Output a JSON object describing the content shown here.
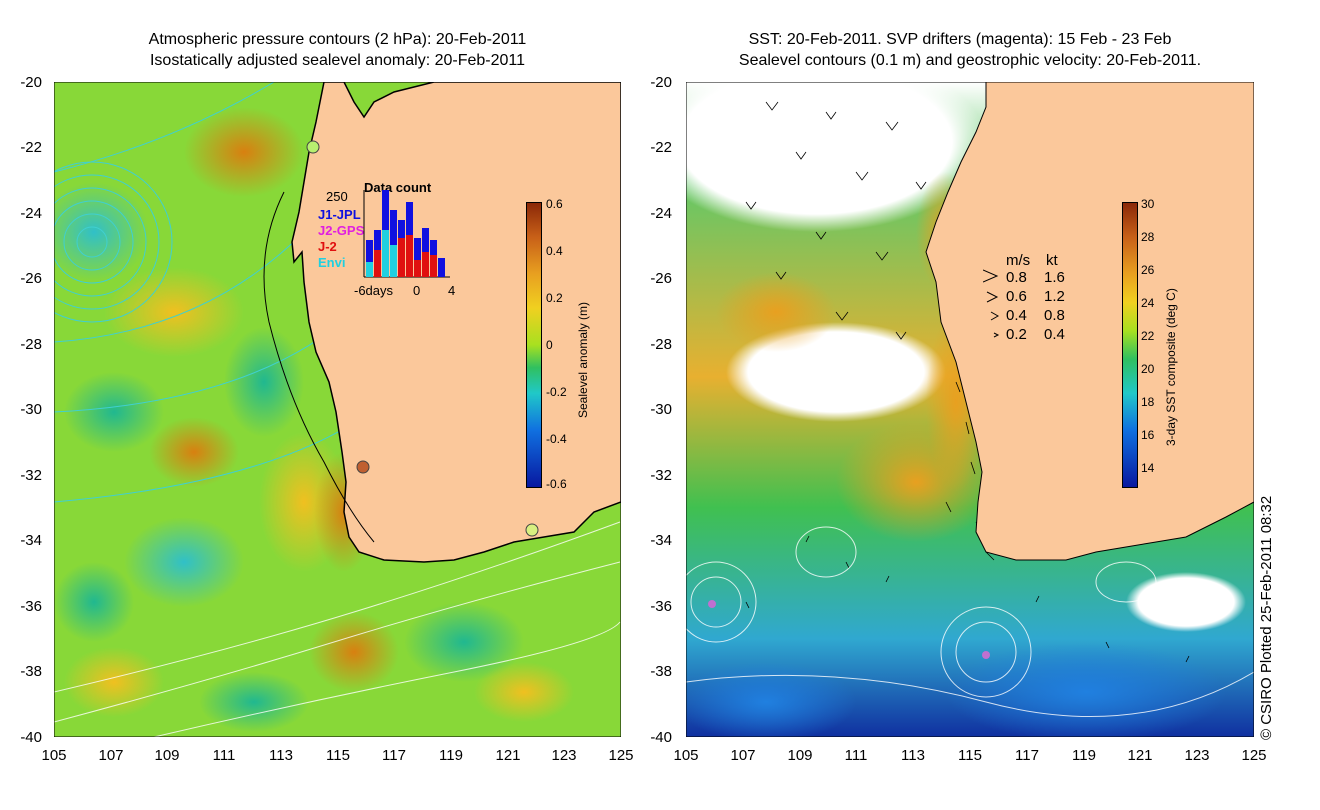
{
  "left_panel": {
    "title_line1": "Atmospheric pressure contours (2 hPa): 20-Feb-2011",
    "title_line2": "Isostatically adjusted sealevel anomaly: 20-Feb-2011",
    "colorbar_label": "Sealevel anomaly (m)",
    "colorbar_ticks": [
      "0.6",
      "0.4",
      "0.2",
      "0",
      "-0.2",
      "-0.4",
      "-0.6"
    ],
    "inset": {
      "title": "Data count",
      "ymax_label": "250",
      "legend": [
        {
          "label": "J1-JPL",
          "color": "#1010e0"
        },
        {
          "label": "J2-GPS",
          "color": "#e020e0"
        },
        {
          "label": "J-2",
          "color": "#e01010"
        },
        {
          "label": "Envi",
          "color": "#20d0e0"
        }
      ],
      "xticks": [
        "-6days",
        "0",
        "4"
      ]
    }
  },
  "right_panel": {
    "title_line1": "SST: 20-Feb-2011. SVP drifters (magenta): 15 Feb - 23 Feb",
    "title_line2": "Sealevel contours (0.1 m) and geostrophic velocity: 20-Feb-2011.",
    "colorbar_label": "3-day SST composite (deg C)",
    "colorbar_ticks": [
      "30",
      "28",
      "26",
      "24",
      "22",
      "20",
      "18",
      "16",
      "14"
    ],
    "speed_legend": {
      "header_ms": "m/s",
      "header_kt": "kt",
      "rows": [
        {
          "ms": "0.8",
          "kt": "1.6"
        },
        {
          "ms": "0.6",
          "kt": "1.2"
        },
        {
          "ms": "0.4",
          "kt": "0.8"
        },
        {
          "ms": "0.2",
          "kt": "0.4"
        }
      ]
    }
  },
  "axes": {
    "lat_ticks": [
      "-20",
      "-22",
      "-24",
      "-26",
      "-28",
      "-30",
      "-32",
      "-34",
      "-36",
      "-38",
      "-40"
    ],
    "lon_ticks": [
      "105",
      "107",
      "109",
      "111",
      "113",
      "115",
      "117",
      "119",
      "121",
      "123",
      "125"
    ]
  },
  "copyright": "© CSIRO Plotted 25-Feb-2011 08:32",
  "colors": {
    "land": "#fbc89b",
    "ocean_mid": "#7bd63a",
    "coast": "#000000"
  }
}
